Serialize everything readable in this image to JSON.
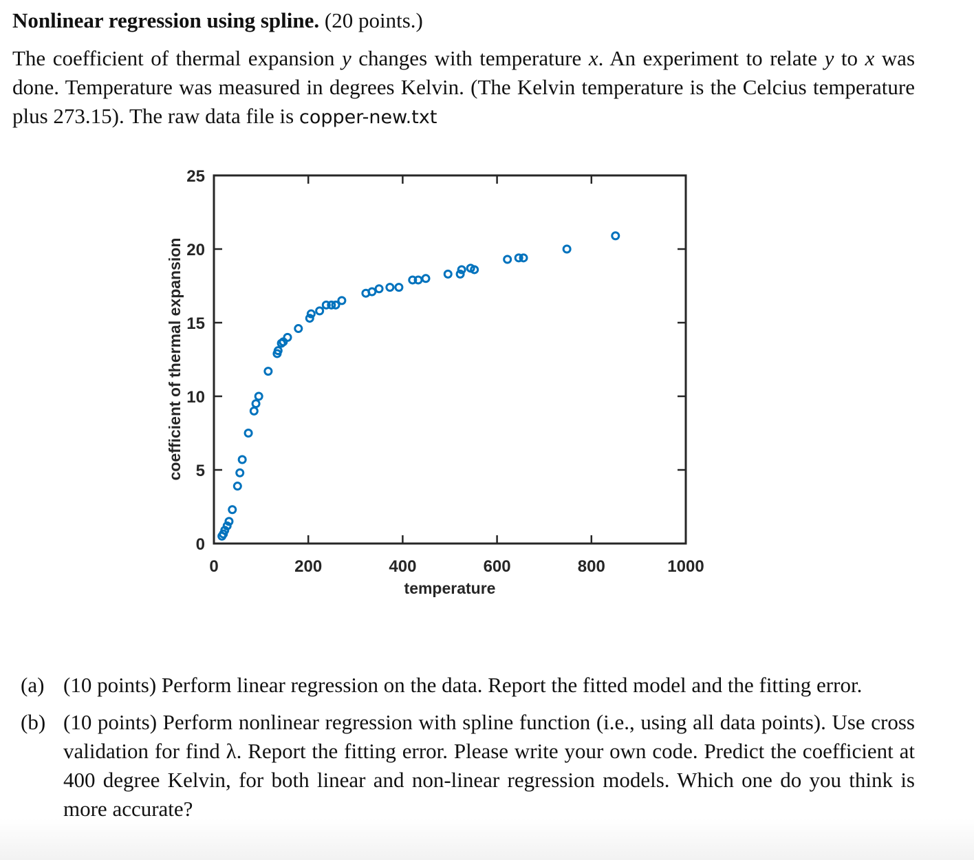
{
  "problem": {
    "title": "Nonlinear regression using spline.",
    "points": "(20 points.)",
    "intro_parts": {
      "p1": "The coefficient of thermal expansion ",
      "var_y": "y",
      "p2": " changes with temperature ",
      "var_x": "x",
      "p3": ". An experiment to relate ",
      "var_y2": "y",
      "p4": " to ",
      "var_x2": "x",
      "p5": " was done. Temperature was measured in degrees Kelvin. (The Kelvin temperature is the Celcius temperature plus 273.15). The raw data file is ",
      "filename": "copper-new.txt"
    }
  },
  "questions": [
    {
      "label": "(a)",
      "text": "(10 points) Perform linear regression on the data. Report the fitted model and the fitting error."
    },
    {
      "label": "(b)",
      "text": "(10 points) Perform nonlinear regression with spline function (i.e., using all data points). Use cross validation for find λ. Report the fitting error. Please write your own code. Predict the coefficient at 400 degree Kelvin, for both linear and non-linear regression models. Which one do you think is more accurate?"
    }
  ],
  "chart_data": {
    "type": "scatter",
    "title": "",
    "xlabel": "temperature",
    "ylabel": "coefficient of thermal expansion",
    "xlim": [
      0,
      1000
    ],
    "ylim": [
      0,
      25
    ],
    "xticks": [
      0,
      200,
      400,
      600,
      800,
      1000
    ],
    "yticks": [
      0,
      5,
      10,
      15,
      20,
      25
    ],
    "grid": false,
    "legend": null,
    "marker": "open-circle",
    "marker_color": "#0072BD",
    "x": [
      17,
      20,
      23,
      28,
      32,
      39,
      50,
      55,
      60,
      73,
      85,
      89,
      95,
      115,
      134,
      136,
      143,
      147,
      156,
      179,
      203,
      206,
      224,
      238,
      249,
      258,
      271,
      322,
      335,
      350,
      373,
      392,
      421,
      433,
      449,
      496,
      522,
      525,
      544,
      552,
      622,
      646,
      656,
      748,
      851
    ],
    "y": [
      0.5,
      0.65,
      0.9,
      1.2,
      1.5,
      2.3,
      3.9,
      4.8,
      5.7,
      7.5,
      9.0,
      9.5,
      10.0,
      11.7,
      12.9,
      13.1,
      13.6,
      13.7,
      14.0,
      14.6,
      15.3,
      15.6,
      15.8,
      16.2,
      16.2,
      16.2,
      16.5,
      17.0,
      17.1,
      17.3,
      17.4,
      17.4,
      17.9,
      17.9,
      18.0,
      18.3,
      18.3,
      18.6,
      18.7,
      18.6,
      19.3,
      19.4,
      19.4,
      20.0,
      20.9
    ]
  }
}
